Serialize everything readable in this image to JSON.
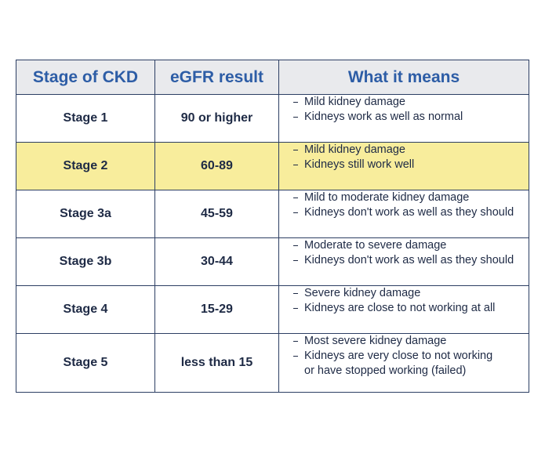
{
  "table": {
    "header": [
      "Stage of CKD",
      "eGFR result",
      "What it means"
    ],
    "rows": [
      {
        "stage": "Stage 1",
        "egfr": "90 or higher",
        "meaning": [
          [
            "Mild kidney damage"
          ],
          [
            "Kidneys work as well as normal"
          ]
        ]
      },
      {
        "stage": "Stage 2",
        "egfr": "60-89",
        "meaning": [
          [
            "Mild kidney damage"
          ],
          [
            "Kidneys still work well"
          ]
        ]
      },
      {
        "stage": "Stage 3a",
        "egfr": "45-59",
        "meaning": [
          [
            "Mild to moderate kidney damage"
          ],
          [
            "Kidneys don't work as well as they should"
          ]
        ]
      },
      {
        "stage": "Stage 3b",
        "egfr": "30-44",
        "meaning": [
          [
            "Moderate to severe damage"
          ],
          [
            "Kidneys don't work as well as they should"
          ]
        ]
      },
      {
        "stage": "Stage 4",
        "egfr": "15-29",
        "meaning": [
          [
            "Severe kidney damage"
          ],
          [
            "Kidneys are close to not working at all"
          ]
        ]
      },
      {
        "stage": "Stage 5",
        "egfr": "less than 15",
        "meaning": [
          [
            "Most severe kidney damage"
          ],
          [
            "Kidneys are very close to not working",
            "or have stopped working (failed)"
          ]
        ]
      }
    ]
  }
}
